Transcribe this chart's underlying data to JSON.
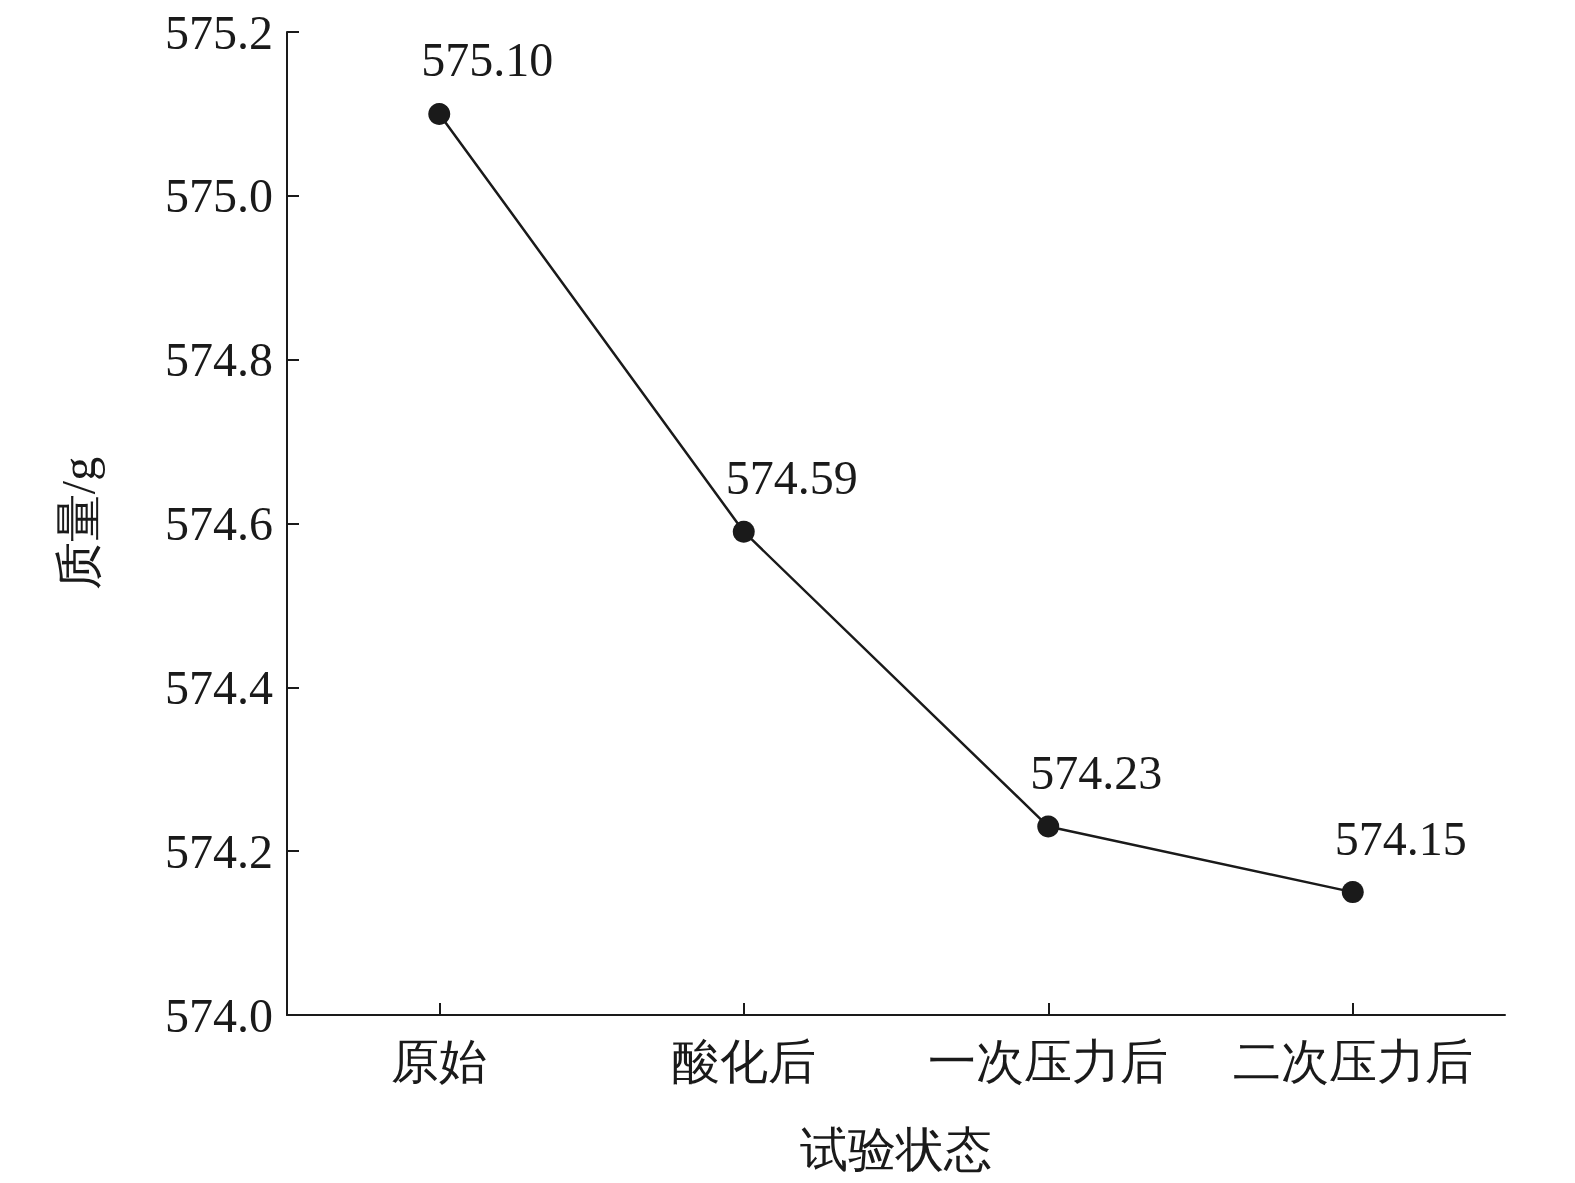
{
  "chart_data": {
    "type": "line",
    "xlabel": "试验状态",
    "ylabel": "质量/g",
    "categories": [
      "原始",
      "酸化后",
      "一次压力后",
      "二次压力后"
    ],
    "series": [
      {
        "color": "#1a1a1a",
        "values": [
          575.1,
          574.59,
          574.23,
          574.15
        ],
        "value_labels": [
          "575.10",
          "574.59",
          "574.23",
          "574.15"
        ]
      }
    ],
    "ylim": [
      574.0,
      575.2
    ],
    "yticks": [
      {
        "value": 574.0,
        "label": "574.0"
      },
      {
        "value": 574.2,
        "label": "574.2"
      },
      {
        "value": 574.4,
        "label": "574.4"
      },
      {
        "value": 574.6,
        "label": "574.6"
      },
      {
        "value": 574.8,
        "label": "574.8"
      },
      {
        "value": 575.0,
        "label": "575.0"
      },
      {
        "value": 575.2,
        "label": "575.2"
      }
    ],
    "grid": false,
    "marker": "circle",
    "line_style": "solid"
  }
}
